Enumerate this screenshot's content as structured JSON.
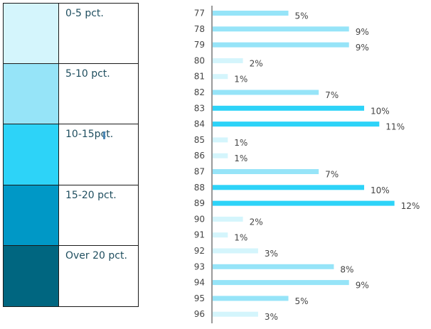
{
  "legend": {
    "items": [
      {
        "label": "0-5 pct.",
        "color": "#d4f5fc"
      },
      {
        "label": "5-10 pct.",
        "color": "#96e4f8"
      },
      {
        "label": "10-15pct.",
        "color": "#2dd3f8"
      },
      {
        "label": "15-20 pct.",
        "color": "#0098c6"
      },
      {
        "label": "Over 20 pct.",
        "color": "#006680"
      }
    ]
  },
  "chart_data": {
    "type": "bar",
    "orientation": "horizontal",
    "categories": [
      "77",
      "78",
      "79",
      "80",
      "81",
      "82",
      "83",
      "84",
      "85",
      "86",
      "87",
      "88",
      "89",
      "90",
      "91",
      "92",
      "93",
      "94",
      "95",
      "96"
    ],
    "values": [
      5,
      9,
      9,
      2,
      1,
      7,
      10,
      11,
      1,
      1,
      7,
      10,
      12,
      2,
      1,
      3,
      8,
      9,
      5,
      3
    ],
    "value_labels": [
      "5%",
      "9%",
      "9%",
      "2%",
      "1%",
      "7%",
      "10%",
      "11%",
      "1%",
      "1%",
      "7%",
      "10%",
      "12%",
      "2%",
      "1%",
      "3%",
      "8%",
      "9%",
      "5%",
      "3%"
    ],
    "color_bins": [
      {
        "range": [
          0,
          5
        ],
        "color": "#d4f5fc"
      },
      {
        "range": [
          5,
          10
        ],
        "color": "#96e4f8"
      },
      {
        "range": [
          10,
          15
        ],
        "color": "#2dd3f8"
      },
      {
        "range": [
          15,
          20
        ],
        "color": "#0098c6"
      },
      {
        "range": [
          20,
          100
        ],
        "color": "#006680"
      }
    ],
    "xlim": [
      0,
      12
    ],
    "grid": false,
    "title": "",
    "xlabel": "",
    "ylabel": ""
  }
}
